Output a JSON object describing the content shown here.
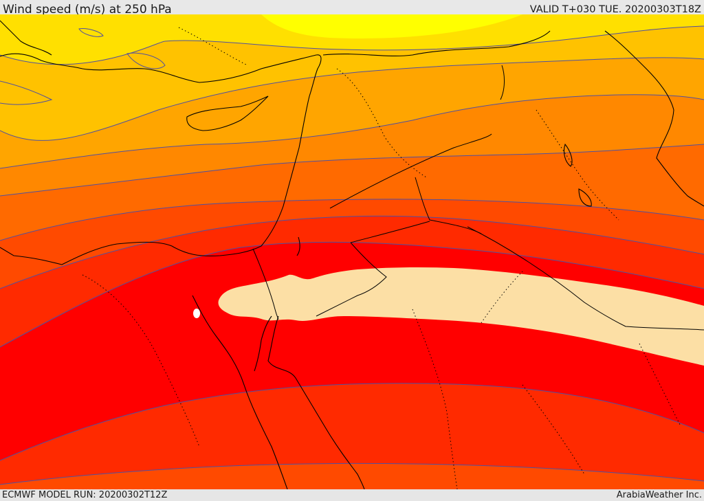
{
  "header": {
    "title": "Wind speed (m/s) at 250 hPa",
    "valid_time": "VALID T+030 TUE. 20200303T18Z"
  },
  "footer": {
    "model_run": "ECMWF MODEL RUN: 20200302T12Z",
    "credit": "ArabiaWeather Inc."
  },
  "map": {
    "variable": "wind speed at 250 hPa",
    "band_colors": [
      "#ffff00",
      "#ffe000",
      "#ffc200",
      "#ffa500",
      "#ff8800",
      "#ff6a00",
      "#ff4a00",
      "#ff2a00",
      "#ff0000",
      "#fcdfa5"
    ],
    "contour_color": "#5050a0",
    "coastline_color": "#000000",
    "jet_core_color": "#fcdfa5"
  }
}
